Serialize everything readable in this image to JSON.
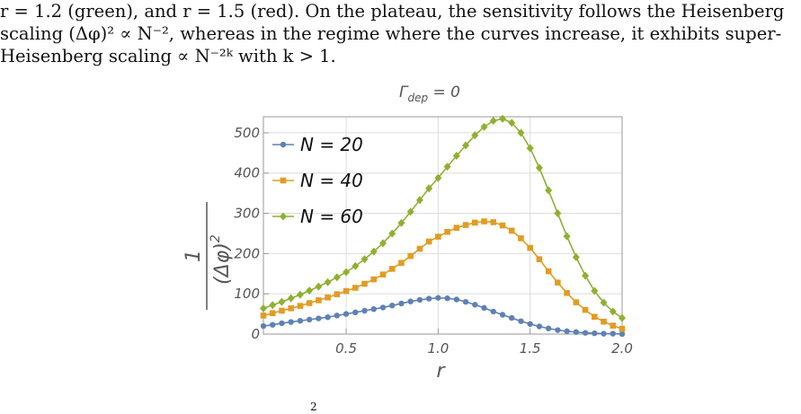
{
  "paragraph": {
    "line1": "r = 1.2 (green), and r = 1.5 (red). On the plateau, the sensitivity follows the Heisenberg",
    "line2": "scaling (Δφ)² ∝ N⁻², whereas in the regime where the curves increase, it exhibits super-",
    "line3": "Heisenberg scaling ∝ N⁻²ᵏ with k > 1."
  },
  "caption_fragment": "2",
  "colors": {
    "N20": "#5e81b5",
    "N40": "#e19c24",
    "N60": "#8fb032",
    "frame": "#999999",
    "grid": "#dcdcdc"
  },
  "chart_data": {
    "type": "line",
    "title": "Γ_dep = 0",
    "title_main": "Γ",
    "title_sub": "dep",
    "title_rest": " = 0",
    "xlabel": "r",
    "ylabel_num": "1",
    "ylabel_den": "(Δφ)",
    "ylabel_exp": "2",
    "xlim": [
      0.05,
      2.0
    ],
    "ylim": [
      0,
      540
    ],
    "xticks": [
      0.5,
      1.0,
      1.5,
      2.0
    ],
    "xtick_labels": [
      "0.5",
      "1.0",
      "1.5",
      "2.0"
    ],
    "yticks": [
      0,
      100,
      200,
      300,
      400,
      500
    ],
    "ytick_labels": [
      "0",
      "100",
      "200",
      "300",
      "400",
      "500"
    ],
    "grid": true,
    "legend_position": "top-left",
    "x": [
      0.05,
      0.1,
      0.15,
      0.2,
      0.25,
      0.3,
      0.35,
      0.4,
      0.45,
      0.5,
      0.55,
      0.6,
      0.65,
      0.7,
      0.75,
      0.8,
      0.85,
      0.9,
      0.95,
      1.0,
      1.05,
      1.1,
      1.15,
      1.2,
      1.25,
      1.3,
      1.35,
      1.4,
      1.45,
      1.5,
      1.55,
      1.6,
      1.65,
      1.7,
      1.75,
      1.8,
      1.85,
      1.9,
      1.95,
      2.0
    ],
    "series": [
      {
        "name": "N = 20",
        "marker": "circle",
        "values": [
          20,
          23,
          27,
          30,
          33,
          36,
          39,
          42,
          46,
          50,
          54,
          58,
          62,
          66,
          71,
          76,
          81,
          85,
          88,
          90,
          89,
          86,
          80,
          73,
          65,
          56,
          48,
          40,
          32,
          25,
          19,
          14,
          10,
          7,
          5,
          3,
          2,
          1,
          1,
          0
        ]
      },
      {
        "name": "N = 40",
        "marker": "square",
        "values": [
          46,
          52,
          58,
          64,
          70,
          77,
          84,
          91,
          99,
          107,
          115,
          125,
          136,
          148,
          162,
          177,
          194,
          212,
          230,
          242,
          254,
          264,
          271,
          277,
          280,
          278,
          270,
          257,
          238,
          214,
          186,
          156,
          128,
          102,
          79,
          60,
          43,
          31,
          21,
          13
        ]
      },
      {
        "name": "N = 60",
        "marker": "diamond",
        "values": [
          64,
          72,
          80,
          89,
          98,
          108,
          118,
          129,
          141,
          154,
          169,
          186,
          205,
          226,
          250,
          276,
          304,
          333,
          362,
          388,
          416,
          443,
          469,
          494,
          515,
          530,
          535,
          525,
          500,
          462,
          413,
          357,
          300,
          243,
          191,
          145,
          107,
          78,
          56,
          40
        ]
      }
    ]
  }
}
